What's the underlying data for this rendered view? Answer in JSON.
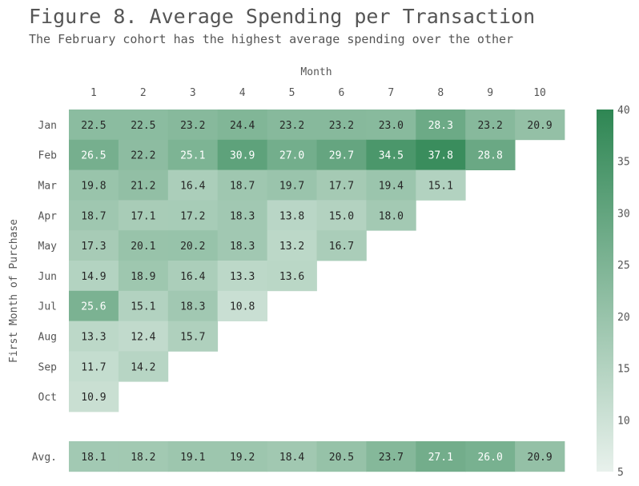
{
  "title": "Figure 8. Average Spending per Transaction",
  "subtitle": "The February cohort has the highest average spending over the other",
  "chart_data": {
    "type": "heatmap",
    "xlabel": "Month",
    "ylabel": "First Month of Purchase",
    "x": [
      "1",
      "2",
      "3",
      "4",
      "5",
      "6",
      "7",
      "8",
      "9",
      "10"
    ],
    "rows": [
      {
        "label": "Jan",
        "values": [
          "22.5",
          "22.5",
          "23.2",
          "24.4",
          "23.2",
          "23.2",
          "23.0",
          "28.3",
          "23.2",
          "20.9"
        ]
      },
      {
        "label": "Feb",
        "values": [
          "26.5",
          "22.2",
          "25.1",
          "30.9",
          "27.0",
          "29.7",
          "34.5",
          "37.8",
          "28.8"
        ]
      },
      {
        "label": "Mar",
        "values": [
          "19.8",
          "21.2",
          "16.4",
          "18.7",
          "19.7",
          "17.7",
          "19.4",
          "15.1"
        ]
      },
      {
        "label": "Apr",
        "values": [
          "18.7",
          "17.1",
          "17.2",
          "18.3",
          "13.8",
          "15.0",
          "18.0"
        ]
      },
      {
        "label": "May",
        "values": [
          "17.3",
          "20.1",
          "20.2",
          "18.3",
          "13.2",
          "16.7"
        ]
      },
      {
        "label": "Jun",
        "values": [
          "14.9",
          "18.9",
          "16.4",
          "13.3",
          "13.6"
        ]
      },
      {
        "label": "Jul",
        "values": [
          "25.6",
          "15.1",
          "18.3",
          "10.8"
        ]
      },
      {
        "label": "Aug",
        "values": [
          "13.3",
          "12.4",
          "15.7"
        ]
      },
      {
        "label": "Sep",
        "values": [
          "11.7",
          "14.2"
        ]
      },
      {
        "label": "Oct",
        "values": [
          "10.9"
        ]
      }
    ],
    "average": {
      "label": "Avg.",
      "values": [
        "18.1",
        "18.2",
        "19.1",
        "19.2",
        "18.4",
        "20.5",
        "23.7",
        "27.1",
        "26.0",
        "20.9"
      ]
    },
    "colorbar": {
      "min": 5,
      "max": 40,
      "ticks": [
        "5",
        "10",
        "15",
        "20",
        "25",
        "30",
        "35",
        "40"
      ]
    },
    "colors": {
      "low": "#e8f1ec",
      "high": "#2e8653",
      "dark_text": "#262626",
      "light_text": "#ffffff",
      "label": "#555555"
    },
    "light_text_threshold": 25
  }
}
